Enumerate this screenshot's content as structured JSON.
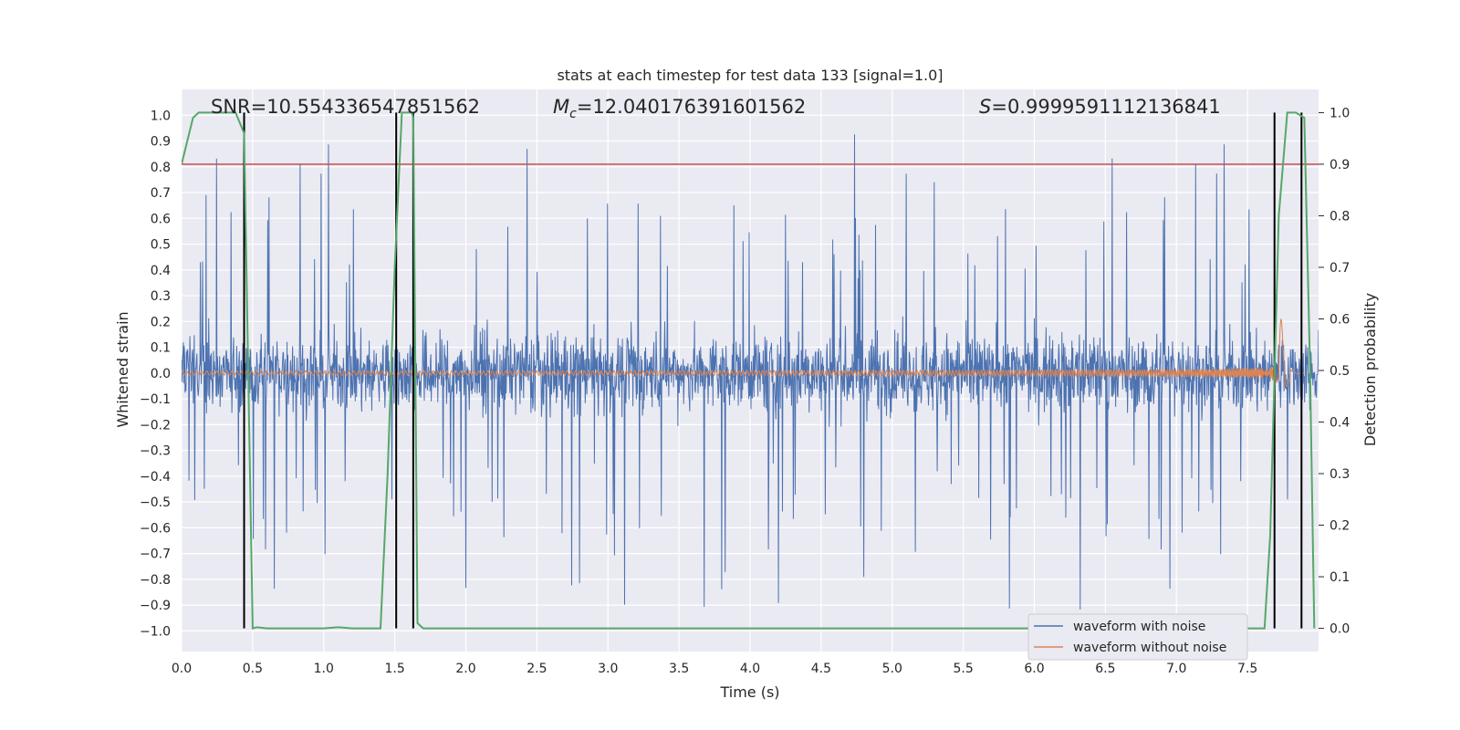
{
  "chart_data": {
    "type": "line",
    "title": "stats at each timestep for test data 133 [signal=1.0]",
    "xlabel": "Time (s)",
    "ylabel": "Whitened strain",
    "y2label": "Detection probability",
    "xlim": [
      0.0,
      8.0
    ],
    "ylim": [
      -1.08,
      1.1
    ],
    "y2lim": [
      -0.045,
      1.045
    ],
    "x_ticks": [
      "0.0",
      "0.5",
      "1.0",
      "1.5",
      "2.0",
      "2.5",
      "3.0",
      "3.5",
      "4.0",
      "4.5",
      "5.0",
      "5.5",
      "6.0",
      "6.5",
      "7.0",
      "7.5"
    ],
    "y_ticks": [
      "1.0",
      "0.9",
      "0.8",
      "0.7",
      "0.6",
      "0.5",
      "0.4",
      "0.3",
      "0.2",
      "0.1",
      "0.0",
      "−0.1",
      "−0.2",
      "−0.3",
      "−0.4",
      "−0.5",
      "−0.6",
      "−0.7",
      "−0.8",
      "−0.9",
      "−1.0"
    ],
    "y2_ticks": [
      "1.0",
      "0.9",
      "0.8",
      "0.7",
      "0.6",
      "0.5",
      "0.4",
      "0.3",
      "0.2",
      "0.1",
      "0.0"
    ],
    "grid": true,
    "legend_position": "lower-right",
    "annotations": {
      "snr": "SNR=10.554336547851562",
      "mc_symbol": "M",
      "mc_sub": "c",
      "mc_value": "=12.040176391601562",
      "s_symbol": "S",
      "s_value": "=0.9999591112136841"
    },
    "threshold": {
      "y2": 0.9,
      "color": "#c44e52"
    },
    "vlines_x": [
      0.44,
      1.51,
      1.63,
      7.69,
      7.88
    ],
    "series": [
      {
        "name": "waveform with noise",
        "color": "#4c72b0",
        "envelope": "noise ~ ±0.35, peaks to ±1.0"
      },
      {
        "name": "waveform without noise",
        "color": "#dd8452",
        "envelope": "chirp, amplitude ~0.01 rising to ~0.40 at t≈7.7 s"
      },
      {
        "color": "#55a868",
        "axis": "right",
        "x": [
          0.0,
          0.08,
          0.12,
          0.18,
          0.25,
          0.3,
          0.35,
          0.38,
          0.44,
          0.5,
          0.53,
          0.6,
          0.8,
          1.0,
          1.1,
          1.2,
          1.4,
          1.45,
          1.5,
          1.55,
          1.58,
          1.62,
          1.63,
          1.66,
          1.7,
          1.8,
          2.5,
          4.0,
          6.0,
          7.0,
          7.5,
          7.62,
          7.66,
          7.72,
          7.78,
          7.84,
          7.9,
          7.94,
          7.97
        ],
        "values": [
          0.9,
          0.99,
          1.0,
          1.0,
          1.0,
          1.0,
          1.0,
          1.0,
          0.96,
          0.0,
          0.002,
          0.0,
          0.0,
          0.0,
          0.002,
          0.0,
          0.0,
          0.3,
          0.7,
          1.0,
          1.0,
          1.0,
          0.99,
          0.01,
          0.0,
          0.0,
          0.0,
          0.0,
          0.0,
          0.0,
          0.0,
          0.0,
          0.18,
          0.8,
          1.0,
          1.0,
          0.99,
          0.5,
          0.0
        ]
      }
    ]
  }
}
